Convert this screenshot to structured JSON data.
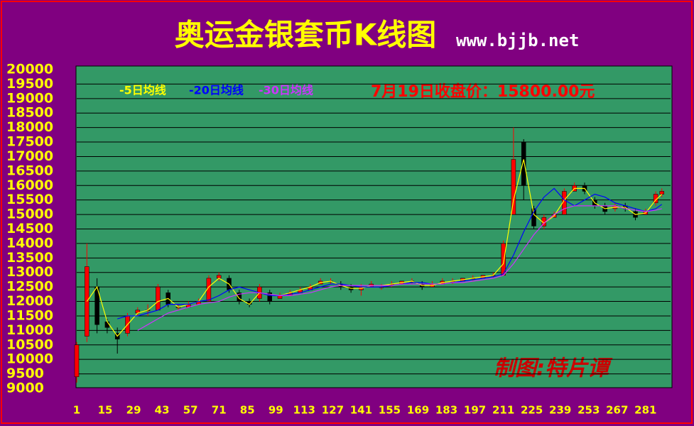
{
  "chart_data": {
    "type": "candlestick",
    "title": "奥运金银套币K线图",
    "subtitle": "www.bjjb.net",
    "annotation": "7月19日收盘价：15800.00元",
    "credit": "制图:特片谭",
    "x": [
      1,
      6,
      11,
      16,
      21,
      26,
      31,
      36,
      41,
      46,
      51,
      56,
      61,
      66,
      71,
      76,
      81,
      86,
      91,
      96,
      101,
      106,
      111,
      116,
      121,
      126,
      131,
      136,
      141,
      146,
      151,
      156,
      161,
      166,
      171,
      176,
      181,
      186,
      191,
      196,
      201,
      206,
      211,
      216,
      221,
      226,
      231,
      236,
      241,
      246,
      251,
      256,
      261,
      266,
      271,
      276,
      281,
      286,
      289
    ],
    "open": [
      9400,
      10800,
      12500,
      11300,
      10900,
      10900,
      11600,
      11700,
      11700,
      12300,
      11800,
      11800,
      11900,
      12000,
      12800,
      12800,
      12300,
      12000,
      12100,
      12300,
      12100,
      12200,
      12300,
      12400,
      12600,
      12700,
      12600,
      12500,
      12400,
      12500,
      12500,
      12600,
      12600,
      12700,
      12600,
      12500,
      12600,
      12700,
      12700,
      12800,
      12800,
      12900,
      12900,
      15000,
      17500,
      15200,
      14600,
      14900,
      15000,
      15800,
      16000,
      15500,
      15300,
      15200,
      15300,
      15100,
      15000,
      15400,
      15700
    ],
    "high": [
      10600,
      14000,
      12800,
      11400,
      11100,
      11600,
      11800,
      11900,
      12600,
      12400,
      11900,
      12000,
      12100,
      12900,
      13000,
      12900,
      12400,
      12100,
      12600,
      12400,
      12300,
      12400,
      12500,
      12600,
      12800,
      12800,
      12700,
      12600,
      12600,
      12700,
      12600,
      12700,
      12700,
      12800,
      12700,
      12700,
      12800,
      12800,
      12800,
      12900,
      12900,
      13000,
      14100,
      18000,
      17600,
      15300,
      15000,
      15100,
      15900,
      16100,
      16100,
      15600,
      15400,
      15400,
      15400,
      15200,
      15200,
      15800,
      15900
    ],
    "low": [
      9200,
      10600,
      10900,
      10900,
      10200,
      10800,
      11500,
      11500,
      11700,
      11800,
      11700,
      11800,
      11900,
      12000,
      12700,
      12300,
      11900,
      11800,
      12000,
      11900,
      12100,
      12200,
      12300,
      12400,
      12600,
      12600,
      12400,
      12300,
      12200,
      12500,
      12400,
      12500,
      12600,
      12600,
      12400,
      12500,
      12600,
      12600,
      12700,
      12700,
      12800,
      12800,
      12900,
      15000,
      15500,
      14500,
      14500,
      14900,
      15000,
      15800,
      15700,
      15200,
      15000,
      15100,
      15100,
      14800,
      15000,
      15300,
      15600
    ],
    "close": [
      10500,
      13200,
      11200,
      11100,
      10700,
      11500,
      11700,
      11700,
      12500,
      11900,
      11800,
      11900,
      12000,
      12800,
      12900,
      12400,
      12000,
      11900,
      12500,
      12000,
      12200,
      12300,
      12400,
      12500,
      12700,
      12700,
      12500,
      12400,
      12500,
      12600,
      12500,
      12600,
      12700,
      12700,
      12500,
      12600,
      12700,
      12700,
      12800,
      12800,
      12900,
      12900,
      14000,
      16900,
      16000,
      14600,
      14900,
      15000,
      15800,
      16000,
      15800,
      15300,
      15100,
      15300,
      15200,
      14900,
      15100,
      15700,
      15800
    ],
    "up_color": "#ff0000",
    "down_color": "#000000",
    "series": [
      {
        "name": "-5日均线",
        "color": "#ffff00",
        "values": [
          null,
          12000,
          12500,
          11300,
          10800,
          11200,
          11600,
          11700,
          12000,
          12100,
          11800,
          11900,
          12000,
          12500,
          12800,
          12600,
          12100,
          11900,
          12300,
          12200,
          12200,
          12300,
          12400,
          12500,
          12650,
          12700,
          12550,
          12450,
          12450,
          12550,
          12550,
          12600,
          12650,
          12700,
          12550,
          12550,
          12650,
          12700,
          12750,
          12800,
          12850,
          12900,
          13300,
          15500,
          16900,
          15000,
          14700,
          14950,
          15500,
          15900,
          15900,
          15400,
          15200,
          15250,
          15250,
          15000,
          15050,
          15500,
          15700
        ]
      },
      {
        "name": "-20日均线",
        "color": "#0000ff",
        "values": [
          null,
          null,
          null,
          null,
          11400,
          11500,
          11500,
          11600,
          11700,
          11900,
          11900,
          11900,
          12000,
          12050,
          12200,
          12400,
          12500,
          12400,
          12300,
          12200,
          12200,
          12250,
          12300,
          12400,
          12500,
          12600,
          12600,
          12550,
          12500,
          12500,
          12500,
          12550,
          12600,
          12650,
          12650,
          12600,
          12600,
          12650,
          12700,
          12750,
          12800,
          12850,
          12950,
          13600,
          14400,
          15100,
          15600,
          15900,
          15500,
          15300,
          15500,
          15700,
          15600,
          15400,
          15300,
          15200,
          15100,
          15200,
          15350
        ]
      },
      {
        "name": "-30日均线",
        "color": "#cc33ff",
        "values": [
          null,
          null,
          null,
          null,
          null,
          null,
          11000,
          11200,
          11400,
          11600,
          11700,
          11800,
          11900,
          11950,
          12000,
          12150,
          12250,
          12300,
          12300,
          12250,
          12200,
          12200,
          12250,
          12300,
          12400,
          12500,
          12550,
          12550,
          12550,
          12550,
          12550,
          12550,
          12600,
          12600,
          12600,
          12600,
          12600,
          12650,
          12650,
          12700,
          12750,
          12800,
          12900,
          13300,
          13800,
          14300,
          14700,
          15000,
          15200,
          15300,
          15300,
          15300,
          15300,
          15300,
          15200,
          15150,
          15100,
          15150,
          15200
        ]
      }
    ],
    "xlim": [
      1,
      294
    ],
    "ylim": [
      9000,
      20000
    ],
    "xticks": [
      1,
      15,
      29,
      43,
      57,
      71,
      85,
      99,
      113,
      127,
      141,
      155,
      169,
      183,
      197,
      211,
      225,
      239,
      253,
      267,
      281
    ],
    "yticks": [
      9000,
      9500,
      10000,
      10500,
      11000,
      11500,
      12000,
      12500,
      13000,
      13500,
      14000,
      14500,
      15000,
      15500,
      16000,
      16500,
      17000,
      17500,
      18000,
      18500,
      19000,
      19500,
      20000
    ],
    "grid": true
  }
}
